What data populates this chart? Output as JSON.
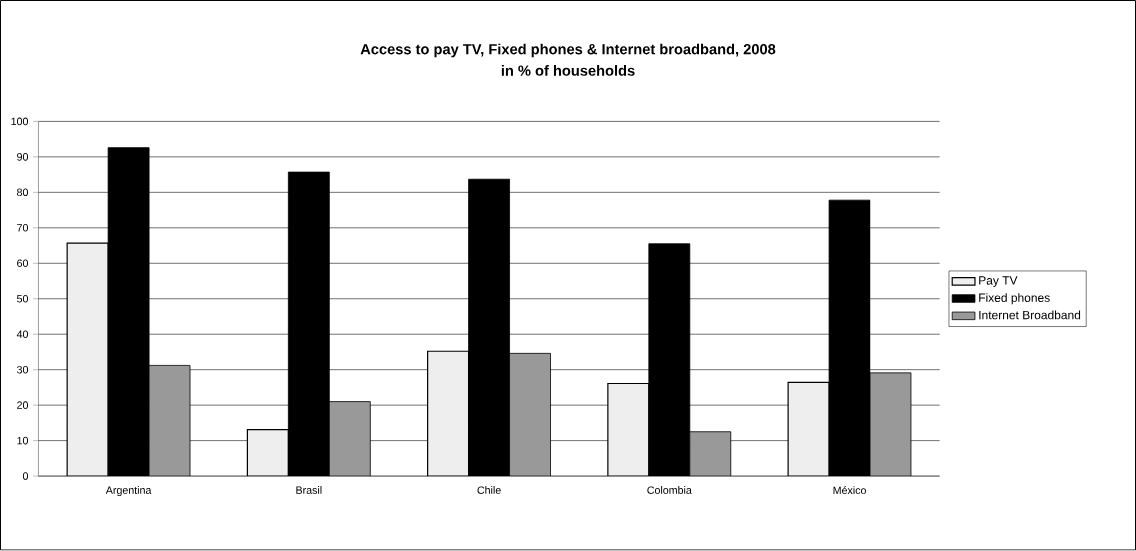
{
  "chart_data": {
    "type": "bar",
    "title": "Access to pay TV, Fixed phones & Internet broadband, 2008",
    "subtitle": "in % of households",
    "categories": [
      "Argentina",
      "Brasil",
      "Chile",
      "Colombia",
      "México"
    ],
    "series": [
      {
        "name": "Pay TV",
        "color": "#eeeeee",
        "values": [
          65.7,
          13.1,
          35.2,
          26.1,
          26.4
        ]
      },
      {
        "name": "Fixed phones",
        "color": "#000000",
        "values": [
          92.6,
          85.7,
          83.7,
          65.5,
          77.8
        ]
      },
      {
        "name": "Internet Broadband",
        "color": "#999999",
        "values": [
          31.2,
          21.0,
          34.6,
          12.5,
          29.1
        ]
      }
    ],
    "ylim": [
      0,
      100
    ],
    "yticks": [
      0,
      10,
      20,
      30,
      40,
      50,
      60,
      70,
      80,
      90,
      100
    ],
    "grid": "y",
    "legend": "right"
  }
}
